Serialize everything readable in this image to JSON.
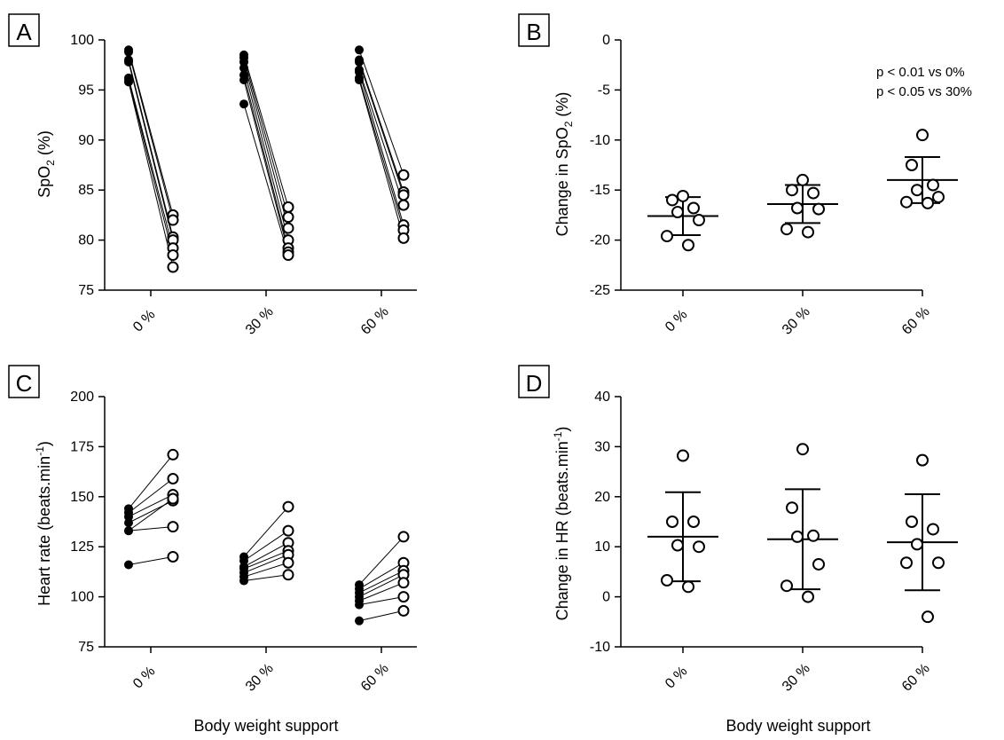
{
  "figure": {
    "xlabel_bottom": "Body weight support"
  },
  "chart_data": [
    {
      "panel": "A",
      "type": "scatter",
      "subtype": "paired-lines",
      "categories": [
        "0 %",
        "30 %",
        "60 %"
      ],
      "ylabel": "SpO",
      "ylabel_sub": "2",
      "ylabel_tail": " (%)",
      "ylim": [
        75,
        100
      ],
      "yticks": [
        75,
        80,
        85,
        90,
        95,
        100
      ],
      "pairs": [
        {
          "category": "0 %",
          "pre": [
            99.0,
            98.8,
            98.0,
            97.8,
            96.2,
            96.0,
            95.8
          ],
          "post": [
            82.5,
            82.0,
            80.3,
            80.0,
            79.2,
            78.5,
            77.3
          ]
        },
        {
          "category": "30 %",
          "pre": [
            98.5,
            98.2,
            97.8,
            97.2,
            96.5,
            96.0,
            93.6
          ],
          "post": [
            83.3,
            82.3,
            81.2,
            80.0,
            79.2,
            78.8,
            78.5
          ]
        },
        {
          "category": "60 %",
          "pre": [
            99.0,
            98.0,
            97.8,
            97.0,
            96.8,
            96.2,
            96.0
          ],
          "post": [
            86.5,
            84.8,
            84.5,
            83.5,
            81.5,
            81.0,
            80.2
          ]
        }
      ],
      "grid": false
    },
    {
      "panel": "B",
      "type": "scatter",
      "subtype": "dot-mean-sd",
      "categories": [
        "0 %",
        "30 %",
        "60 %"
      ],
      "ylabel": "Change in SpO",
      "ylabel_sub": "2",
      "ylabel_tail": " (%)",
      "ylim": [
        -25,
        0
      ],
      "yticks": [
        -25,
        -20,
        -15,
        -10,
        -5,
        0
      ],
      "points": [
        [
          -15.6,
          -16.0,
          -16.8,
          -17.2,
          -18.0,
          -19.6,
          -20.5
        ],
        [
          -14.0,
          -15.0,
          -15.3,
          -16.8,
          -16.9,
          -18.9,
          -19.2
        ],
        [
          -9.5,
          -12.5,
          -14.5,
          -15.0,
          -15.7,
          -16.2,
          -16.3
        ]
      ],
      "mean": [
        -17.6,
        -16.4,
        -14.0
      ],
      "sd": [
        1.9,
        1.9,
        2.3
      ],
      "annotations": [
        "p < 0.01 vs 0%",
        "p < 0.05 vs 30%"
      ],
      "grid": false
    },
    {
      "panel": "C",
      "type": "scatter",
      "subtype": "paired-lines",
      "categories": [
        "0 %",
        "30 %",
        "60 %"
      ],
      "ylabel": "Heart rate (beats.min",
      "ylabel_sup": "-1",
      "ylabel_tail": ")",
      "xlabel": "Body weight support",
      "ylim": [
        75,
        200
      ],
      "yticks": [
        75,
        100,
        125,
        150,
        175,
        200
      ],
      "ytick_min": 75,
      "pairs": [
        {
          "category": "0 %",
          "pre": [
            144,
            142,
            140,
            137,
            133,
            133,
            116
          ],
          "post": [
            171,
            159,
            151,
            148,
            149,
            135,
            120
          ]
        },
        {
          "category": "30 %",
          "pre": [
            120,
            118,
            115,
            114,
            112,
            110,
            108
          ],
          "post": [
            145,
            133,
            127,
            123,
            121,
            117,
            111
          ]
        },
        {
          "category": "60 %",
          "pre": [
            106,
            104,
            102,
            100,
            98,
            96,
            88
          ],
          "post": [
            130,
            117,
            113,
            111,
            107,
            100,
            93
          ]
        }
      ],
      "grid": false
    },
    {
      "panel": "D",
      "type": "scatter",
      "subtype": "dot-mean-sd",
      "categories": [
        "0 %",
        "30 %",
        "60 %"
      ],
      "ylabel": "Change in HR  (beats.min",
      "ylabel_sup": "-1",
      "ylabel_tail": ")",
      "xlabel": "Body weight support",
      "ylim": [
        -10,
        40
      ],
      "yticks": [
        -10,
        0,
        10,
        20,
        30,
        40
      ],
      "points": [
        [
          28.2,
          15.0,
          15.0,
          10.3,
          10.0,
          3.3,
          2.0
        ],
        [
          29.5,
          17.8,
          12.2,
          12.0,
          6.5,
          2.2,
          0.0
        ],
        [
          27.3,
          15.0,
          13.5,
          10.5,
          6.8,
          6.8,
          -4.0
        ]
      ],
      "mean": [
        12.0,
        11.5,
        10.9
      ],
      "sd": [
        8.9,
        10.0,
        9.6
      ],
      "grid": false
    }
  ]
}
